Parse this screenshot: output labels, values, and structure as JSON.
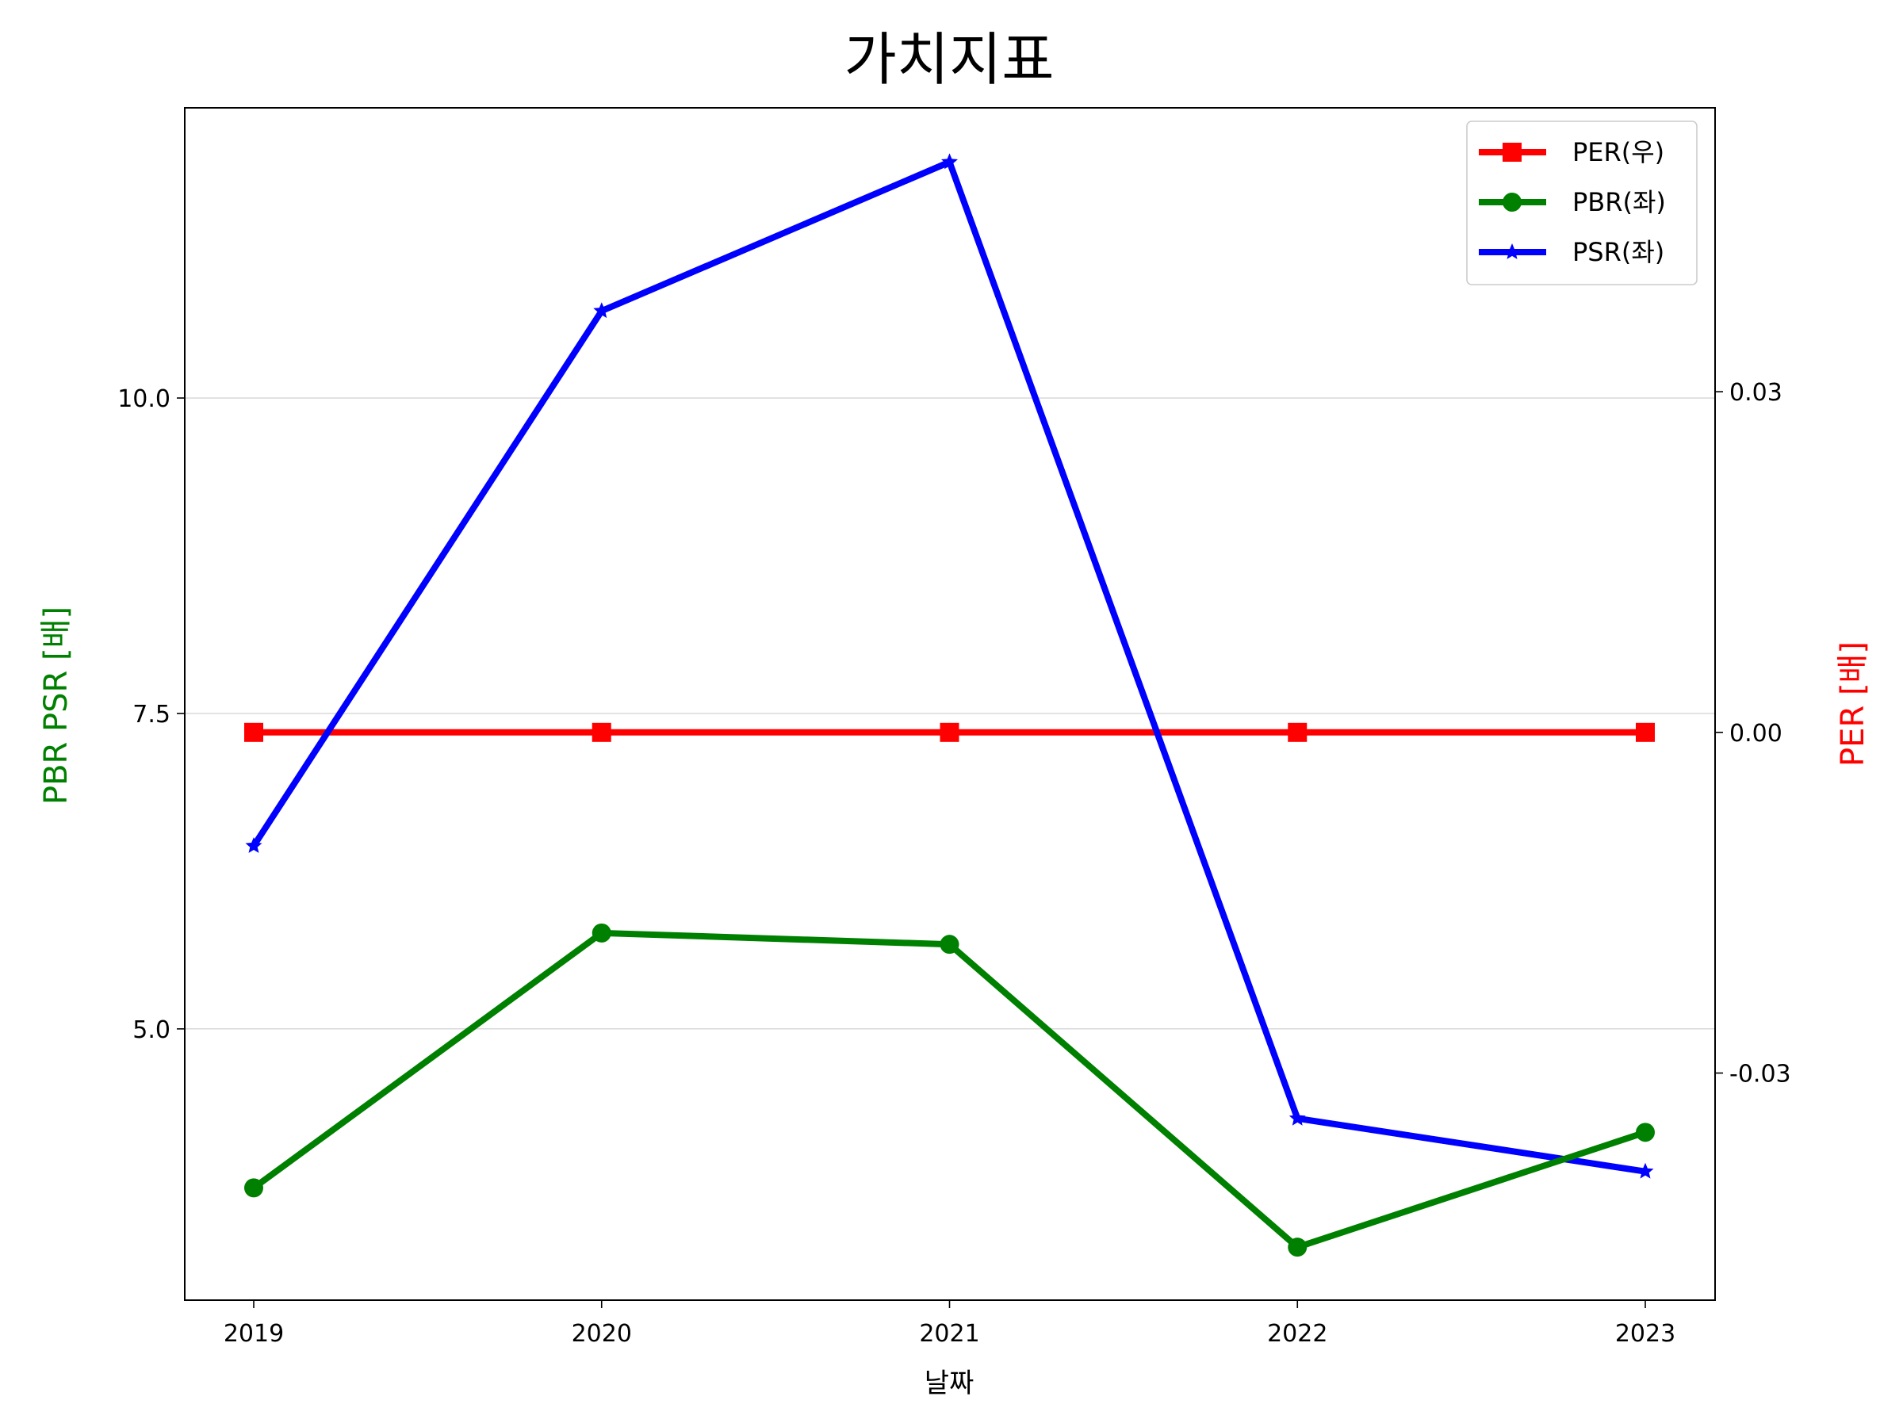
{
  "chart_data": {
    "type": "line",
    "title": "가치지표",
    "xlabel": "날짜",
    "ylabel_left": "PBR PSR [배]",
    "ylabel_right": "PER [배]",
    "x": [
      "2019",
      "2020",
      "2021",
      "2022",
      "2023"
    ],
    "ylim_left": [
      2.85,
      12.3
    ],
    "yticks_left": [
      5.0,
      7.5,
      10.0
    ],
    "ytick_labels_left": [
      "5.0",
      "7.5",
      "10.0"
    ],
    "ylim_right": [
      -0.05,
      0.055
    ],
    "yticks_right": [
      -0.03,
      0.0,
      0.03
    ],
    "ytick_labels_right": [
      "-0.03",
      "0.00",
      "0.03"
    ],
    "grid": "horizontal",
    "legend_position": "top-right",
    "series": [
      {
        "name": "PER(우)",
        "axis": "right",
        "color": "#ff0000",
        "marker": "square",
        "values": [
          0,
          0,
          0,
          0,
          0
        ]
      },
      {
        "name": "PBR(좌)",
        "axis": "left",
        "color": "#008000",
        "marker": "circle",
        "values": [
          3.74,
          5.76,
          5.67,
          3.27,
          4.18
        ]
      },
      {
        "name": "PSR(좌)",
        "axis": "left",
        "color": "#0000ff",
        "marker": "star",
        "values": [
          6.45,
          10.69,
          11.87,
          4.29,
          3.87
        ]
      }
    ]
  }
}
